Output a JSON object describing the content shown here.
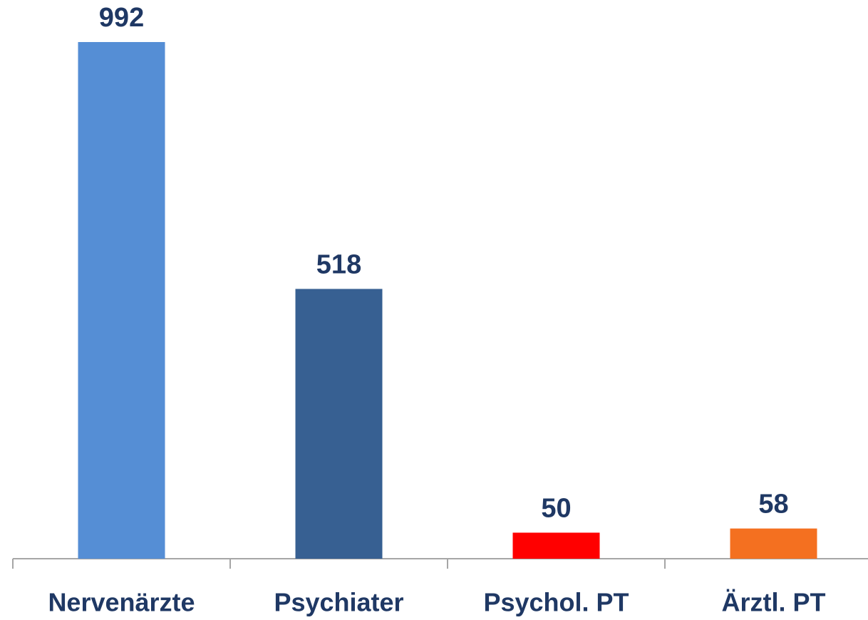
{
  "chart_data": {
    "type": "bar",
    "categories": [
      "Nervenärzte",
      "Psychiater",
      "Psychol. PT",
      "Ärztl. PT"
    ],
    "values": [
      992,
      518,
      50,
      58
    ],
    "colors": [
      "#558ed5",
      "#376092",
      "#ff0000",
      "#f47020"
    ]
  }
}
